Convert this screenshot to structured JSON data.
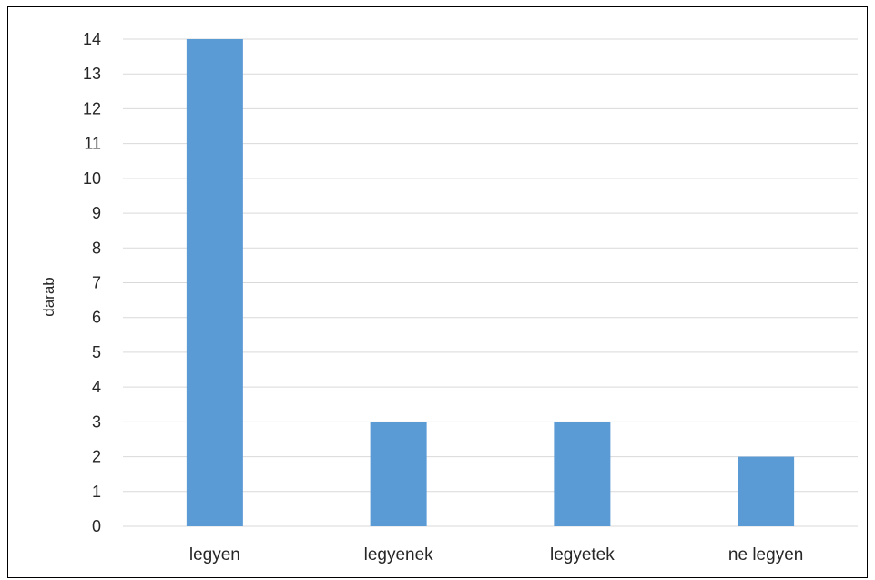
{
  "chart_data": {
    "type": "bar",
    "categories": [
      "legyen",
      "legyenek",
      "legyetek",
      "ne legyen"
    ],
    "values": [
      14,
      3,
      3,
      2
    ],
    "xlabel": "",
    "ylabel": "darab",
    "ylim": [
      0,
      14
    ],
    "yticks": [
      "0",
      "1",
      "2",
      "3",
      "4",
      "5",
      "6",
      "7",
      "8",
      "9",
      "10",
      "11",
      "12",
      "13",
      "14"
    ],
    "grid": true,
    "legend": "none",
    "colors": {
      "bar": "#5B9BD5",
      "grid": "#D9D9D9",
      "text": "#262626"
    }
  }
}
